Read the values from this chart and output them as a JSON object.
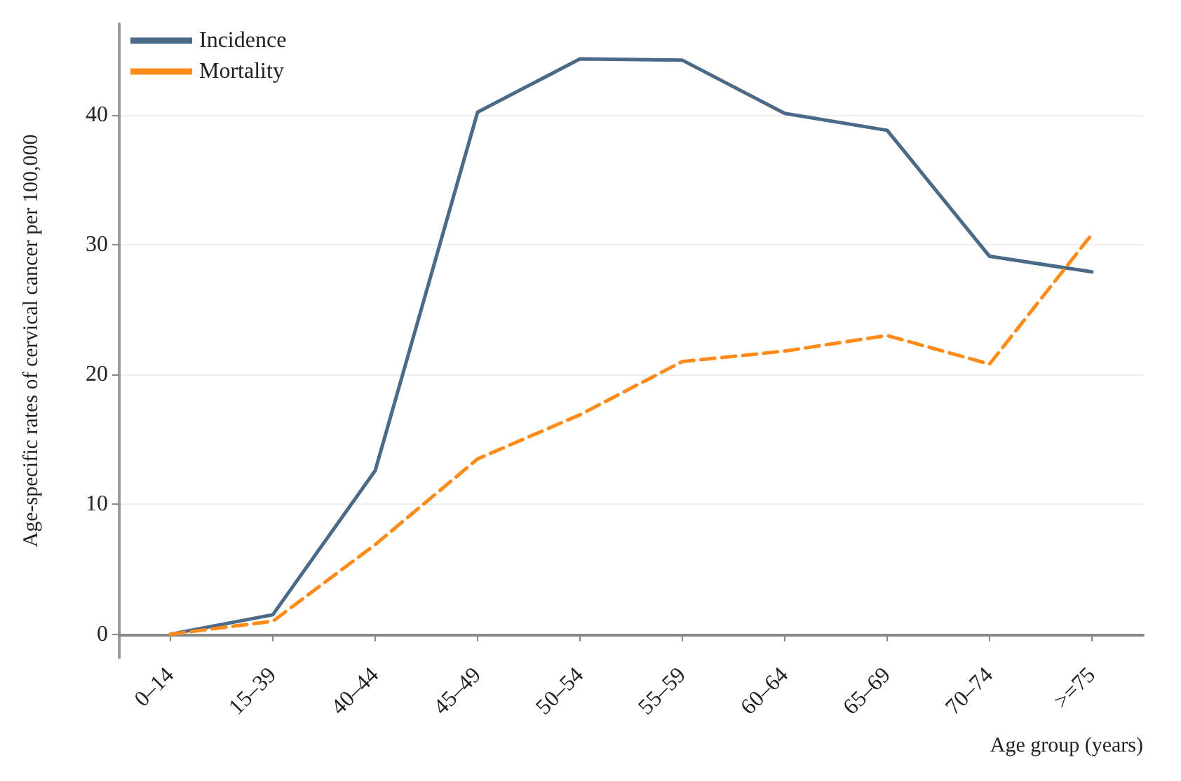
{
  "chart_data": {
    "type": "line",
    "xlabel": "Age group (years)",
    "ylabel": "Age-specific rates of cervical cancer per 100,000",
    "categories": [
      "0–14",
      "15–39",
      "40–44",
      "45–49",
      "50–54",
      "55–59",
      "60–64",
      "65–69",
      "70–74",
      ">=75"
    ],
    "series": [
      {
        "name": "Incidence",
        "color": "#4a6a88",
        "line_style": "solid",
        "values": [
          0,
          1.5,
          12.6,
          40.2,
          44.3,
          44.2,
          40.1,
          38.8,
          29.1,
          27.9
        ]
      },
      {
        "name": "Mortality",
        "color": "#ff8c1a",
        "line_style": "dashed",
        "values": [
          0,
          1.0,
          6.9,
          13.5,
          16.9,
          21.0,
          21.8,
          23.0,
          20.8,
          30.8
        ]
      }
    ],
    "ylim": [
      -1.8,
      47
    ],
    "yticks": [
      0,
      10,
      20,
      30,
      40
    ],
    "grid": "y",
    "legend": "top left",
    "marker": "none"
  }
}
